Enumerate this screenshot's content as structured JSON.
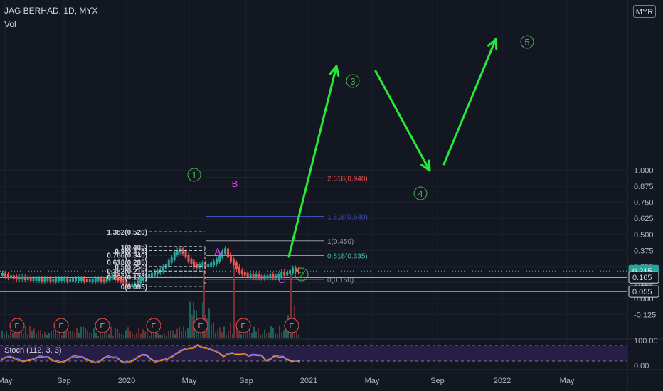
{
  "header": {
    "symbol_line": "JAG BERHAD, 1D, MYX",
    "volume_label": "Vol",
    "currency_button": "MYR"
  },
  "stoch": {
    "label": "Stoch (112, 3, 3)",
    "axis": [
      "100.00",
      "0.00"
    ]
  },
  "colors": {
    "background": "#131722",
    "up": "#26a69a",
    "down": "#ef5350",
    "projection": "#28e83c",
    "wave_label": "#4caf50",
    "abc_label": "#e040fb",
    "stoch_line": "#ab87ff"
  },
  "chart_data": {
    "type": "line",
    "title": "",
    "y_axis": {
      "ticks": [
        "1.000",
        "0.875",
        "0.750",
        "0.625",
        "0.500",
        "0.375",
        "0.250",
        "0.125",
        "0.000",
        "-0.125"
      ],
      "range": [
        -0.15,
        1.05
      ]
    },
    "x_axis": {
      "ticks": [
        "May",
        "Sep",
        "2020",
        "May",
        "Sep",
        "2021",
        "May",
        "Sep",
        "2022",
        "May"
      ]
    },
    "price_badges": [
      {
        "text": "0.215",
        "value": 0.215,
        "style": "filled"
      },
      {
        "text": "0.165",
        "value": 0.165,
        "style": "outline"
      },
      {
        "text": "0.055",
        "value": 0.055,
        "style": "outline"
      }
    ],
    "fib_left": [
      {
        "label": "1.382(0.520)",
        "value": 0.52
      },
      {
        "label": "1(0.405)",
        "value": 0.405
      },
      {
        "label": "0.9(0.375)",
        "value": 0.375
      },
      {
        "label": "0.786(0.340)",
        "value": 0.34
      },
      {
        "label": "0.618(0.285)",
        "value": 0.285
      },
      {
        "label": "0.5(0.250)",
        "value": 0.25
      },
      {
        "label": "0.382(0.215)",
        "value": 0.215
      },
      {
        "label": "0.236(0.170)",
        "value": 0.17
      },
      {
        "label": "0(0.095)",
        "value": 0.095
      }
    ],
    "fib_right": [
      {
        "label": "2.618(0.940)",
        "value": 0.94,
        "color": "#ef5350"
      },
      {
        "label": "1.618(0.640)",
        "value": 0.64,
        "color": "#3f51b5"
      },
      {
        "label": "1(0.450)",
        "value": 0.45,
        "color": "#9598a1"
      },
      {
        "label": "0.618(0.335)",
        "value": 0.335,
        "color": "#4db6ac"
      },
      {
        "label": "0(0.150)",
        "value": 0.15,
        "color": "#9598a1"
      }
    ],
    "wave_labels": [
      "1",
      "2",
      "3",
      "4",
      "5"
    ],
    "abc_labels": [
      "A",
      "B",
      "C"
    ],
    "earnings_marker": "E",
    "earnings_count": 7,
    "price_series": [
      0.19,
      0.18,
      0.17,
      0.17,
      0.165,
      0.16,
      0.16,
      0.16,
      0.155,
      0.155,
      0.15,
      0.15,
      0.15,
      0.15,
      0.145,
      0.15,
      0.15,
      0.145,
      0.145,
      0.15,
      0.15,
      0.15,
      0.15,
      0.145,
      0.145,
      0.15,
      0.15,
      0.15,
      0.15,
      0.145,
      0.14,
      0.14,
      0.14,
      0.15,
      0.15,
      0.145,
      0.14,
      0.15,
      0.17,
      0.18,
      0.16,
      0.15,
      0.14,
      0.13,
      0.11,
      0.1,
      0.1,
      0.11,
      0.13,
      0.15,
      0.16,
      0.17,
      0.18,
      0.19,
      0.2,
      0.21,
      0.22,
      0.24,
      0.26,
      0.29,
      0.31,
      0.35,
      0.37,
      0.38,
      0.36,
      0.33,
      0.3,
      0.28,
      0.26,
      0.25,
      0.26,
      0.27,
      0.26,
      0.26,
      0.27,
      0.28,
      0.3,
      0.33,
      0.36,
      0.38,
      0.33,
      0.3,
      0.27,
      0.24,
      0.21,
      0.2,
      0.19,
      0.18,
      0.18,
      0.17,
      0.18,
      0.17,
      0.165,
      0.17,
      0.17,
      0.18,
      0.17,
      0.17,
      0.18,
      0.2,
      0.19,
      0.2,
      0.21,
      0.23,
      0.22,
      0.215
    ]
  }
}
